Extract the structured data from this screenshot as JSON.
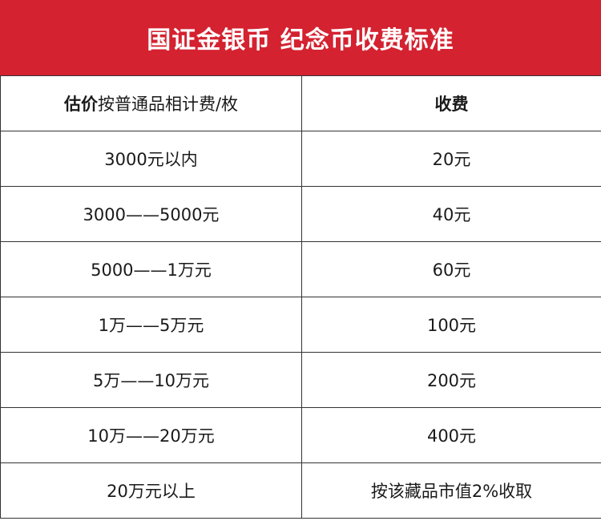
{
  "banner": {
    "title": "国证金银币 纪念币收费标准",
    "bg_color": "#d42230"
  },
  "table": {
    "header": {
      "col1_bold": "估价",
      "col1_rest": "按普通品相计费/枚",
      "col2": "收费"
    },
    "rows": [
      {
        "range": "3000元以内",
        "fee": "20元"
      },
      {
        "range": "3000——5000元",
        "fee": "40元"
      },
      {
        "range": "5000——1万元",
        "fee": "60元"
      },
      {
        "range": "1万——5万元",
        "fee": "100元"
      },
      {
        "range": "5万——10万元",
        "fee": "200元"
      },
      {
        "range": "10万——20万元",
        "fee": "400元"
      },
      {
        "range": "20万元以上",
        "fee": "按该藏品市值2%收取"
      }
    ]
  }
}
